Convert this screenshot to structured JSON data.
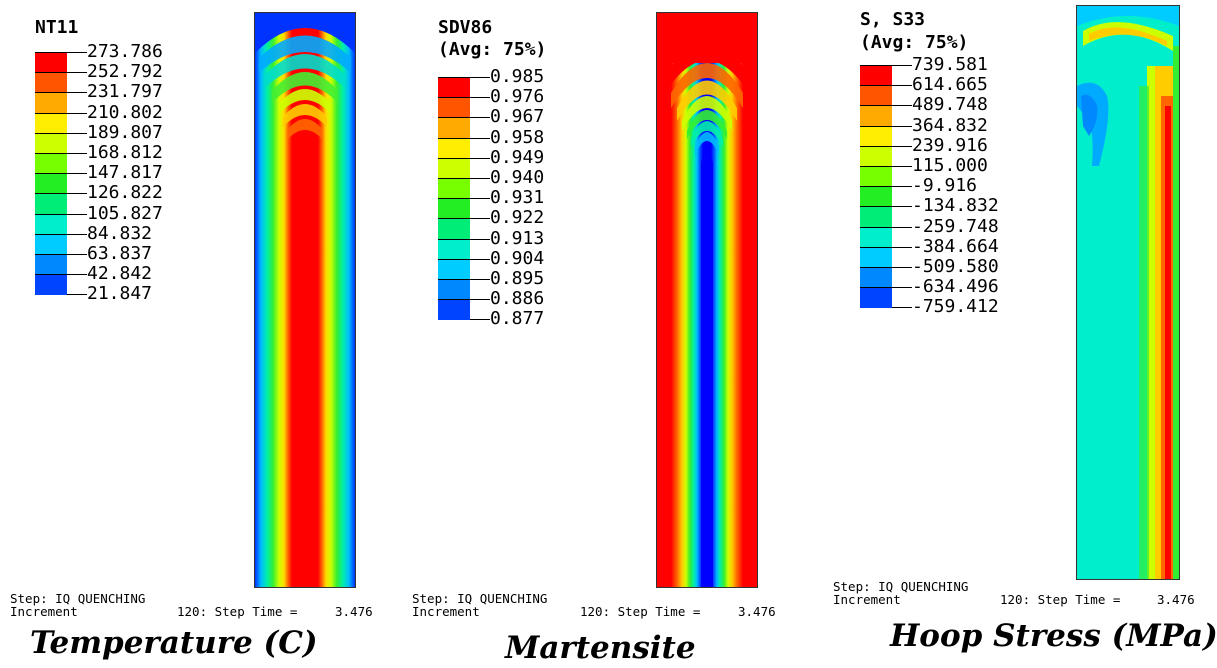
{
  "colors": {
    "contour_scale": [
      "#ff0000",
      "#ff5500",
      "#ffaa00",
      "#ffee00",
      "#ccff00",
      "#77ff00",
      "#22ee22",
      "#00ee77",
      "#00eecc",
      "#00ccff",
      "#0088ff",
      "#0044ff",
      "#0000ff"
    ]
  },
  "panels": [
    {
      "legend_title": "NT11",
      "legend_values": [
        "273.786",
        "252.792",
        "231.797",
        "210.802",
        "189.807",
        "168.812",
        "147.817",
        "126.822",
        "105.827",
        "84.832",
        "63.837",
        "42.842",
        "21.847"
      ],
      "step_line": "Step: IQ QUENCHING",
      "increment_label": "Increment",
      "increment_value": "120: Step Time =",
      "step_time": "3.476",
      "caption": "Temperature (C)"
    },
    {
      "legend_title": "SDV86",
      "legend_subtitle": "(Avg: 75%)",
      "legend_values": [
        "0.985",
        "0.976",
        "0.967",
        "0.958",
        "0.949",
        "0.940",
        "0.931",
        "0.922",
        "0.913",
        "0.904",
        "0.895",
        "0.886",
        "0.877"
      ],
      "step_line": "Step: IQ QUENCHING",
      "increment_label": "Increment",
      "increment_value": "120: Step Time =",
      "step_time": "3.476",
      "caption": "Martensite"
    },
    {
      "legend_title": "S, S33",
      "legend_subtitle": "(Avg: 75%)",
      "legend_values": [
        "739.581",
        "614.665",
        "489.748",
        "364.832",
        "239.916",
        "115.000",
        "-9.916",
        "-134.832",
        "-259.748",
        "-384.664",
        "-509.580",
        "-634.496",
        "-759.412"
      ],
      "step_line": "Step: IQ QUENCHING",
      "increment_label": "Increment",
      "increment_value": "120: Step Time =",
      "step_time": "3.476",
      "caption": "Hoop Stress (MPa)"
    }
  ]
}
